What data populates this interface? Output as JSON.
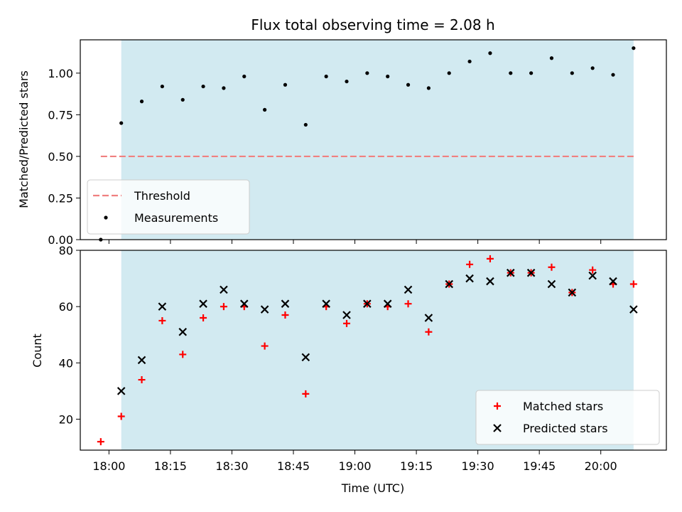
{
  "chart_data": [
    {
      "type": "scatter",
      "panel": "top",
      "title": "Flux total observing time = 2.08 h",
      "ylabel": "Matched/Predicted stars",
      "ylim": [
        0,
        1.2
      ],
      "yticks": [
        0.0,
        0.25,
        0.5,
        0.75,
        1.0
      ],
      "ytick_labels": [
        "0.00",
        "0.25",
        "0.50",
        "0.75",
        "1.00"
      ],
      "x_unit": "time UTC",
      "xlim": [
        "17:53",
        "20:16"
      ],
      "shaded_span": [
        "18:03",
        "20:08"
      ],
      "shade_color": "#add8e6",
      "legend_position": "lower-left",
      "threshold": {
        "name": "Threshold",
        "value": 0.5,
        "x_range": [
          "17:58",
          "20:08"
        ],
        "color": "#f08080",
        "style": "dashed"
      },
      "series": [
        {
          "name": "Measurements",
          "color": "#000000",
          "marker": "dot",
          "x": [
            "17:58",
            "18:03",
            "18:08",
            "18:13",
            "18:18",
            "18:23",
            "18:28",
            "18:33",
            "18:38",
            "18:43",
            "18:48",
            "18:53",
            "18:58",
            "19:03",
            "19:08",
            "19:13",
            "19:18",
            "19:23",
            "19:28",
            "19:33",
            "19:38",
            "19:43",
            "19:48",
            "19:53",
            "19:58",
            "20:03",
            "20:08"
          ],
          "y": [
            0.0,
            0.7,
            0.83,
            0.92,
            0.84,
            0.92,
            0.91,
            0.98,
            0.78,
            0.93,
            0.69,
            0.98,
            0.95,
            1.0,
            0.98,
            0.93,
            0.91,
            1.0,
            1.07,
            1.12,
            1.0,
            1.0,
            1.09,
            1.0,
            1.03,
            0.99,
            1.15
          ]
        }
      ]
    },
    {
      "type": "scatter",
      "panel": "bottom",
      "xlabel": "Time (UTC)",
      "ylabel": "Count",
      "ylim": [
        9,
        80
      ],
      "yticks": [
        20,
        40,
        60,
        80
      ],
      "xticks": [
        "18:00",
        "18:15",
        "18:30",
        "18:45",
        "19:00",
        "19:15",
        "19:30",
        "19:45",
        "20:00"
      ],
      "xlim": [
        "17:53",
        "20:16"
      ],
      "shaded_span": [
        "18:03",
        "20:08"
      ],
      "shade_color": "#add8e6",
      "legend_position": "lower-right",
      "series": [
        {
          "name": "Matched stars",
          "color": "#ff0000",
          "marker": "plus",
          "x": [
            "17:58",
            "18:03",
            "18:08",
            "18:13",
            "18:18",
            "18:23",
            "18:28",
            "18:33",
            "18:38",
            "18:43",
            "18:48",
            "18:53",
            "18:58",
            "19:03",
            "19:08",
            "19:13",
            "19:18",
            "19:23",
            "19:28",
            "19:33",
            "19:38",
            "19:43",
            "19:48",
            "19:53",
            "19:58",
            "20:03",
            "20:08"
          ],
          "y": [
            12,
            21,
            34,
            55,
            43,
            56,
            60,
            60,
            46,
            57,
            29,
            60,
            54,
            61,
            60,
            61,
            51,
            68,
            75,
            77,
            72,
            72,
            74,
            65,
            73,
            68,
            68
          ]
        },
        {
          "name": "Predicted stars",
          "color": "#000000",
          "marker": "x",
          "x": [
            "18:03",
            "18:08",
            "18:13",
            "18:18",
            "18:23",
            "18:28",
            "18:33",
            "18:38",
            "18:43",
            "18:48",
            "18:53",
            "18:58",
            "19:03",
            "19:08",
            "19:13",
            "19:18",
            "19:23",
            "19:28",
            "19:33",
            "19:38",
            "19:43",
            "19:48",
            "19:53",
            "19:58",
            "20:03",
            "20:08"
          ],
          "y": [
            30,
            41,
            60,
            51,
            61,
            66,
            61,
            59,
            61,
            42,
            61,
            57,
            61,
            61,
            66,
            56,
            68,
            70,
            69,
            72,
            72,
            68,
            65,
            71,
            69,
            59
          ]
        }
      ]
    }
  ]
}
